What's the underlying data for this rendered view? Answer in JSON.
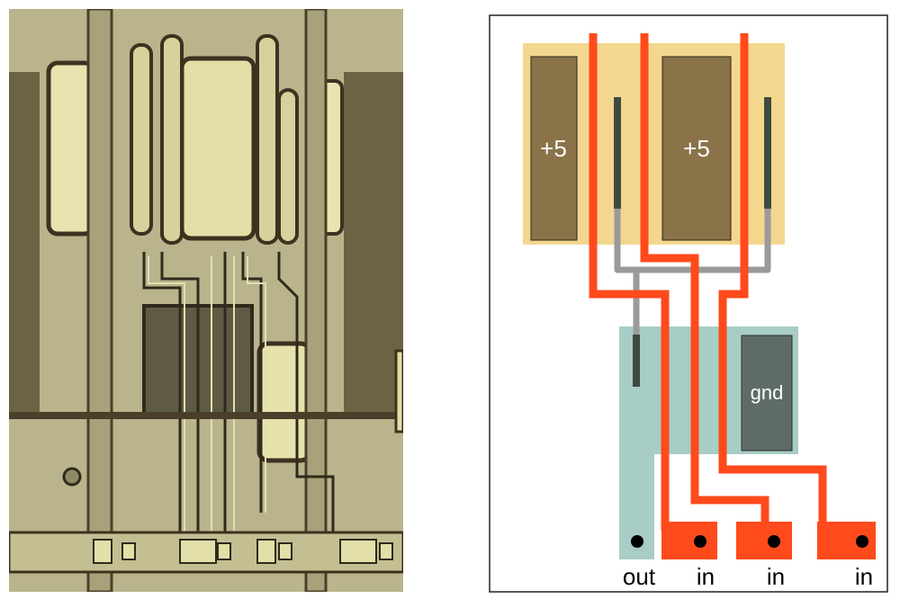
{
  "diagram": {
    "pmos_contacts": [
      {
        "label": "+5"
      },
      {
        "label": "+5"
      }
    ],
    "nmos_contact": {
      "label": "gnd"
    },
    "pins": [
      {
        "label": "out"
      },
      {
        "label": "in"
      },
      {
        "label": "in"
      },
      {
        "label": "in"
      }
    ]
  },
  "colors": {
    "p_region": "#f3d78f",
    "n_region": "#a8ccc6",
    "metal_pos": "#8a7348",
    "metal_gnd": "#5e6b66",
    "polysilicon": "#ff4a1c",
    "wire_gray": "#9a9a9a",
    "contact_bar": "#3f4a3f",
    "die_base": "#b6b08a"
  }
}
